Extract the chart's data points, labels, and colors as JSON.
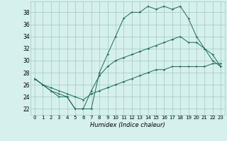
{
  "xlabel": "Humidex (Indice chaleur)",
  "bg_color": "#d6f0ed",
  "grid_color": "#a0c8c0",
  "line_color": "#1a6b5a",
  "yticks": [
    22,
    24,
    26,
    28,
    30,
    32,
    34,
    36,
    38
  ],
  "xticks": [
    0,
    1,
    2,
    3,
    4,
    5,
    6,
    7,
    8,
    9,
    10,
    11,
    12,
    13,
    14,
    15,
    16,
    17,
    18,
    19,
    20,
    21,
    22,
    23
  ],
  "xlim": [
    -0.5,
    23.5
  ],
  "ylim": [
    21.0,
    39.8
  ],
  "series": [
    {
      "x": [
        0,
        1,
        2,
        3,
        4,
        5,
        6,
        7,
        8,
        9,
        10,
        11,
        12,
        13,
        14,
        15,
        16,
        17,
        18,
        19,
        20,
        21,
        22,
        23
      ],
      "y": [
        27,
        26,
        25,
        24,
        24,
        22,
        22,
        22,
        28,
        31,
        34,
        37,
        38,
        38,
        39,
        38.5,
        39,
        38.5,
        39,
        37,
        34,
        32,
        31,
        29
      ]
    },
    {
      "x": [
        0,
        1,
        2,
        3,
        4,
        5,
        6,
        7,
        8,
        9,
        10,
        11,
        12,
        13,
        14,
        15,
        16,
        17,
        18,
        19,
        20,
        21,
        22,
        23
      ],
      "y": [
        27,
        26,
        25,
        24.5,
        24,
        22,
        22,
        25,
        27.5,
        29,
        30,
        30.5,
        31,
        31.5,
        32,
        32.5,
        33,
        33.5,
        34,
        33,
        33,
        32,
        30,
        29
      ]
    },
    {
      "x": [
        0,
        1,
        2,
        3,
        4,
        5,
        6,
        7,
        8,
        9,
        10,
        11,
        12,
        13,
        14,
        15,
        16,
        17,
        18,
        19,
        20,
        21,
        22,
        23
      ],
      "y": [
        27,
        26,
        25.5,
        25,
        24.5,
        24,
        23.5,
        24.5,
        25,
        25.5,
        26,
        26.5,
        27,
        27.5,
        28,
        28.5,
        28.5,
        29,
        29,
        29,
        29,
        29,
        29.5,
        29.5
      ]
    }
  ]
}
